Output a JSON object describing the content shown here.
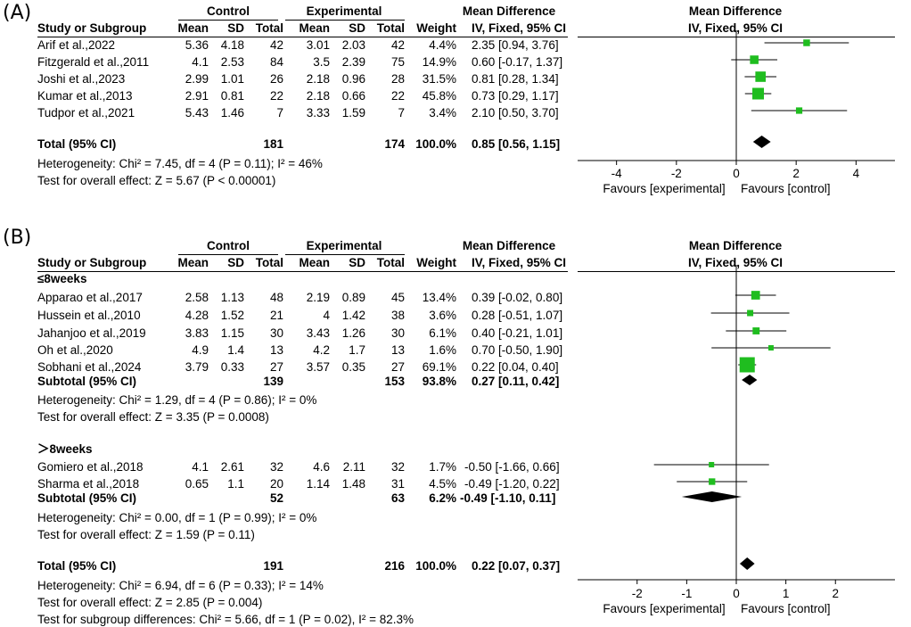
{
  "chart_data": [
    {
      "type": "forest",
      "panel_label": "(A)",
      "header": {
        "control": "Control",
        "experimental": "Experimental",
        "md": "Mean Difference",
        "md_plot": "Mean Difference",
        "study": "Study or Subgroup",
        "mean": "Mean",
        "sd": "SD",
        "total": "Total",
        "weight": "Weight",
        "method": "IV, Fixed, 95% CI",
        "method_plot": "IV, Fixed, 95% CI"
      },
      "groups": [
        {
          "name": "",
          "studies": [
            {
              "study": "Arif et al.,2022",
              "c_mean": "5.36",
              "c_sd": "4.18",
              "c_total": "42",
              "e_mean": "3.01",
              "e_sd": "2.03",
              "e_total": "42",
              "weight": "4.4%",
              "ci_text": "2.35 [0.94, 3.76]",
              "md": 2.35,
              "lo": 0.94,
              "hi": 3.76,
              "w": 4.4
            },
            {
              "study": "Fitzgerald et al.,2011",
              "c_mean": "4.1",
              "c_sd": "2.53",
              "c_total": "84",
              "e_mean": "3.5",
              "e_sd": "2.39",
              "e_total": "75",
              "weight": "14.9%",
              "ci_text": "0.60 [-0.17, 1.37]",
              "md": 0.6,
              "lo": -0.17,
              "hi": 1.37,
              "w": 14.9
            },
            {
              "study": "Joshi et al.,2023",
              "c_mean": "2.99",
              "c_sd": "1.01",
              "c_total": "26",
              "e_mean": "2.18",
              "e_sd": "0.96",
              "e_total": "28",
              "weight": "31.5%",
              "ci_text": "0.81 [0.28, 1.34]",
              "md": 0.81,
              "lo": 0.28,
              "hi": 1.34,
              "w": 31.5
            },
            {
              "study": "Kumar et al.,2013",
              "c_mean": "2.91",
              "c_sd": "0.81",
              "c_total": "22",
              "e_mean": "2.18",
              "e_sd": "0.66",
              "e_total": "22",
              "weight": "45.8%",
              "ci_text": "0.73 [0.29, 1.17]",
              "md": 0.73,
              "lo": 0.29,
              "hi": 1.17,
              "w": 45.8
            },
            {
              "study": "Tudpor et al.,2021",
              "c_mean": "5.43",
              "c_sd": "1.46",
              "c_total": "7",
              "e_mean": "3.33",
              "e_sd": "1.59",
              "e_total": "7",
              "weight": "3.4%",
              "ci_text": "2.10 [0.50, 3.70]",
              "md": 2.1,
              "lo": 0.5,
              "hi": 3.7,
              "w": 3.4
            }
          ]
        }
      ],
      "total": {
        "label": "Total (95% CI)",
        "c_total": "181",
        "e_total": "174",
        "weight": "100.0%",
        "ci_text": "0.85 [0.56, 1.15]",
        "md": 0.85,
        "lo": 0.56,
        "hi": 1.15
      },
      "heterogeneity": "Heterogeneity: Chi² = 7.45, df = 4 (P = 0.11); I² = 46%",
      "overall_effect": "Test for overall effect: Z = 5.67 (P < 0.00001)",
      "x_ticks": [
        -4,
        -2,
        0,
        2,
        4
      ],
      "x_tick_labels": [
        "-4",
        "-2",
        "0",
        "2",
        "4"
      ],
      "xlim": [
        -5.3,
        5.3
      ],
      "favours_left": "Favours [experimental]",
      "favours_right": "Favours [control]"
    },
    {
      "type": "forest",
      "panel_label": "(B)",
      "header": {
        "control": "Control",
        "experimental": "Experimental",
        "md": "Mean Difference",
        "md_plot": "Mean Difference",
        "study": "Study or Subgroup",
        "mean": "Mean",
        "sd": "SD",
        "total": "Total",
        "weight": "Weight",
        "method": "IV, Fixed, 95% CI",
        "method_plot": "IV, Fixed, 95% CI"
      },
      "groups": [
        {
          "name": "≤8weeks",
          "studies": [
            {
              "study": "Apparao  et al.,2017",
              "c_mean": "2.58",
              "c_sd": "1.13",
              "c_total": "48",
              "e_mean": "2.19",
              "e_sd": "0.89",
              "e_total": "45",
              "weight": "13.4%",
              "ci_text": "0.39 [-0.02, 0.80]",
              "md": 0.39,
              "lo": -0.02,
              "hi": 0.8,
              "w": 13.4
            },
            {
              "study": "Hussein et al.,2010",
              "c_mean": "4.28",
              "c_sd": "1.52",
              "c_total": "21",
              "e_mean": "4",
              "e_sd": "1.42",
              "e_total": "38",
              "weight": "3.6%",
              "ci_text": "0.28 [-0.51, 1.07]",
              "md": 0.28,
              "lo": -0.51,
              "hi": 1.07,
              "w": 3.6
            },
            {
              "study": "Jahanjoo et al.,2019",
              "c_mean": "3.83",
              "c_sd": "1.15",
              "c_total": "30",
              "e_mean": "3.43",
              "e_sd": "1.26",
              "e_total": "30",
              "weight": "6.1%",
              "ci_text": "0.40 [-0.21, 1.01]",
              "md": 0.4,
              "lo": -0.21,
              "hi": 1.01,
              "w": 6.1
            },
            {
              "study": "Oh et al.,2020",
              "c_mean": "4.9",
              "c_sd": "1.4",
              "c_total": "13",
              "e_mean": "4.2",
              "e_sd": "1.7",
              "e_total": "13",
              "weight": "1.6%",
              "ci_text": "0.70 [-0.50, 1.90]",
              "md": 0.7,
              "lo": -0.5,
              "hi": 1.9,
              "w": 1.6
            },
            {
              "study": "Sobhani et al.,2024",
              "c_mean": "3.79",
              "c_sd": "0.33",
              "c_total": "27",
              "e_mean": "3.57",
              "e_sd": "0.35",
              "e_total": "27",
              "weight": "69.1%",
              "ci_text": "0.22 [0.04, 0.40]",
              "md": 0.22,
              "lo": 0.04,
              "hi": 0.4,
              "w": 69.1
            }
          ],
          "subtotal": {
            "label": "Subtotal (95% CI)",
            "c_total": "139",
            "e_total": "153",
            "weight": "93.8%",
            "ci_text": "0.27 [0.11, 0.42]",
            "md": 0.27,
            "lo": 0.11,
            "hi": 0.42
          },
          "heterogeneity": "Heterogeneity: Chi² = 1.29, df = 4 (P = 0.86); I² = 0%",
          "overall_effect": "Test for overall effect: Z = 3.35 (P = 0.0008)"
        },
        {
          "name": "＞8weeks",
          "studies": [
            {
              "study": "Gomiero et al.,2018",
              "c_mean": "4.1",
              "c_sd": "2.61",
              "c_total": "32",
              "e_mean": "4.6",
              "e_sd": "2.11",
              "e_total": "32",
              "weight": "1.7%",
              "ci_text": "-0.50 [-1.66, 0.66]",
              "md": -0.5,
              "lo": -1.66,
              "hi": 0.66,
              "w": 1.7
            },
            {
              "study": "Sharma et al.,2018",
              "c_mean": "0.65",
              "c_sd": "1.1",
              "c_total": "20",
              "e_mean": "1.14",
              "e_sd": "1.48",
              "e_total": "31",
              "weight": "4.5%",
              "ci_text": "-0.49 [-1.20, 0.22]",
              "md": -0.49,
              "lo": -1.2,
              "hi": 0.22,
              "w": 4.5
            }
          ],
          "subtotal": {
            "label": "Subtotal (95% CI)",
            "c_total": "52",
            "e_total": "63",
            "weight": "6.2%",
            "ci_text": "-0.49 [-1.10, 0.11]",
            "md": -0.49,
            "lo": -1.1,
            "hi": 0.11
          },
          "heterogeneity": "Heterogeneity: Chi² = 0.00, df = 1 (P = 0.99); I² = 0%",
          "overall_effect": "Test for overall effect: Z = 1.59 (P = 0.11)"
        }
      ],
      "total": {
        "label": "Total (95% CI)",
        "c_total": "191",
        "e_total": "216",
        "weight": "100.0%",
        "ci_text": "0.22 [0.07, 0.37]",
        "md": 0.22,
        "lo": 0.07,
        "hi": 0.37
      },
      "heterogeneity": "Heterogeneity: Chi² = 6.94, df = 6 (P = 0.33); I² = 14%",
      "overall_effect": "Test for overall effect: Z = 2.85 (P = 0.004)",
      "subgroup_test": "Test for subgroup differences: Chi² = 5.66, df = 1 (P = 0.02), I² = 82.3%",
      "x_ticks": [
        -2,
        -1,
        0,
        1,
        2
      ],
      "x_tick_labels": [
        "-2",
        "-1",
        "0",
        "1",
        "2"
      ],
      "xlim": [
        -3.2,
        3.2
      ],
      "favours_left": "Favours [experimental]",
      "favours_right": "Favours [control]"
    }
  ],
  "colors": {
    "square": "#1fbd1f",
    "diamond": "#000000",
    "line": "#000000"
  }
}
